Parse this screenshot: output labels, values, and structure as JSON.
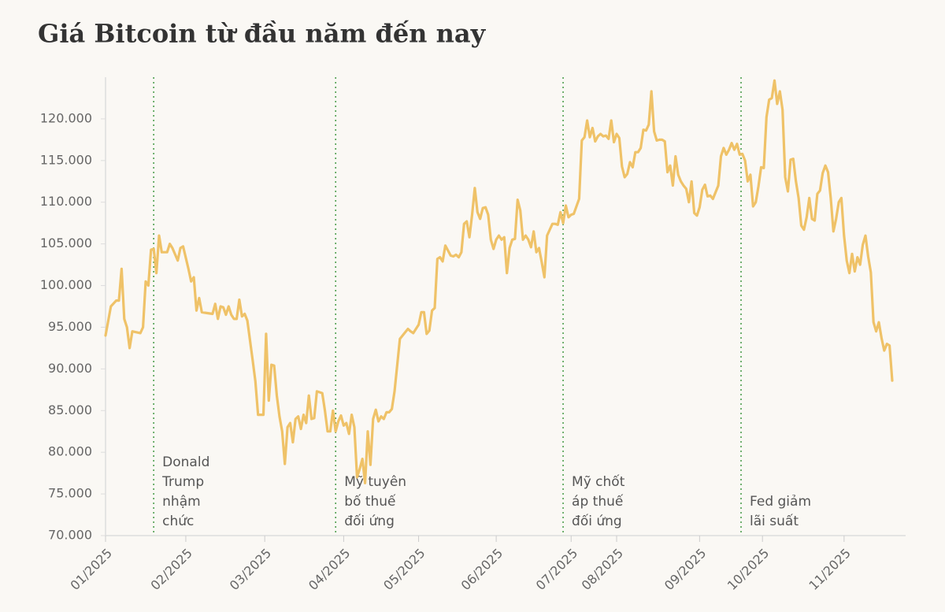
{
  "chart_data": {
    "type": "line",
    "title": "Giá Bitcoin từ đầu năm đến nay",
    "color": "#efc268",
    "x": [
      0,
      2,
      4,
      5,
      6,
      7,
      8,
      9,
      10,
      13,
      14,
      15,
      16,
      17,
      18,
      19,
      20,
      21,
      23,
      24,
      25,
      27,
      28,
      29,
      31,
      32,
      33,
      34,
      35,
      36,
      38,
      40,
      41,
      42,
      43,
      44,
      45,
      46,
      47,
      48,
      49,
      50,
      51,
      52,
      53,
      55,
      56,
      57,
      59,
      60,
      61,
      62,
      63,
      64,
      65,
      66,
      67,
      68,
      69,
      70,
      71,
      72,
      73,
      74,
      75,
      76,
      77,
      78,
      79,
      80,
      81,
      82,
      83,
      84,
      85,
      86,
      87,
      88,
      89,
      90,
      91,
      92,
      93,
      94,
      95,
      96,
      97,
      98,
      99,
      100,
      101,
      102,
      103,
      104,
      105,
      106,
      107,
      108,
      110,
      111,
      112,
      113,
      114,
      115,
      117,
      118,
      119,
      120,
      121,
      122,
      123,
      124,
      125,
      126,
      127,
      128,
      129,
      130,
      131,
      132,
      133,
      134,
      135,
      136,
      137,
      138,
      139,
      140,
      141,
      142,
      143,
      144,
      145,
      146,
      147,
      148,
      149,
      150,
      151,
      152,
      153,
      154,
      155,
      156,
      157,
      158,
      159,
      160,
      161,
      162,
      163,
      164,
      165,
      166,
      167,
      168,
      169,
      170,
      171,
      172,
      173,
      174,
      175,
      176,
      177,
      178,
      179,
      180,
      181,
      182,
      183,
      184,
      185,
      186,
      187,
      188,
      189,
      190,
      191,
      192,
      193,
      194,
      195,
      196,
      197,
      198,
      199,
      200,
      201,
      202,
      203,
      204,
      205,
      206,
      207,
      208,
      209,
      210,
      211,
      212,
      213,
      214,
      215,
      216,
      217,
      218,
      219,
      220,
      221,
      222,
      223,
      224,
      225,
      226,
      227,
      228,
      229,
      230,
      231,
      232,
      233,
      234,
      235,
      236,
      237,
      238,
      239,
      240,
      241,
      242,
      243,
      244,
      245,
      246,
      247,
      248,
      249,
      250,
      251,
      252,
      253,
      254,
      255,
      256,
      257,
      258,
      259,
      260,
      261,
      262,
      263,
      264,
      265,
      266,
      267,
      268,
      269,
      270,
      271,
      272,
      273,
      274,
      275,
      276,
      277,
      278,
      279,
      280,
      281,
      282,
      283,
      284,
      285,
      286,
      287,
      288,
      289,
      290,
      291,
      292,
      293,
      294
    ],
    "values": [
      94000,
      97500,
      98200,
      98200,
      102000,
      96000,
      95000,
      92500,
      94500,
      94300,
      95000,
      100500,
      100000,
      104300,
      104400,
      101500,
      106000,
      104000,
      104000,
      105000,
      104500,
      103000,
      104500,
      104700,
      102000,
      100500,
      101000,
      97000,
      98500,
      96800,
      96700,
      96600,
      97800,
      96000,
      97500,
      97400,
      96500,
      97500,
      96500,
      96000,
      96000,
      98300,
      96300,
      96600,
      95800,
      91000,
      88500,
      84500,
      84500,
      94200,
      86200,
      90500,
      90400,
      86800,
      84300,
      82500,
      78600,
      83000,
      83500,
      81200,
      84000,
      84300,
      82800,
      84500,
      83500,
      86800,
      84000,
      84100,
      87300,
      87200,
      87100,
      85000,
      82500,
      82500,
      85000,
      82500,
      83700,
      84400,
      83200,
      83500,
      82200,
      84500,
      83000,
      77000,
      78000,
      79200,
      76300,
      82500,
      78500,
      84000,
      85100,
      83700,
      84300,
      84000,
      84800,
      84800,
      85200,
      87300,
      93600,
      94000,
      94400,
      94800,
      94500,
      94300,
      95300,
      96800,
      96800,
      94200,
      94600,
      97000,
      97300,
      103200,
      103400,
      102900,
      104800,
      104200,
      103600,
      103500,
      103700,
      103400,
      104000,
      107400,
      107700,
      105800,
      108500,
      111700,
      108800,
      108000,
      109300,
      109400,
      108500,
      105500,
      104400,
      105500,
      106000,
      105500,
      105800,
      101500,
      104500,
      105500,
      105600,
      110300,
      109000,
      105500,
      106000,
      105500,
      104600,
      106500,
      104000,
      104500,
      102800,
      101000,
      106000,
      106700,
      107400,
      107400,
      107300,
      108800,
      107500,
      109600,
      108200,
      108500,
      108600,
      109500,
      110400,
      117400,
      117800,
      119800,
      117800,
      118900,
      117300,
      117900,
      118200,
      117900,
      118000,
      117600,
      119800,
      117200,
      118200,
      117700,
      114300,
      113000,
      113400,
      114800,
      114200,
      116000,
      116000,
      116500,
      118700,
      118600,
      119300,
      123300,
      118500,
      117400,
      117500,
      117500,
      117300,
      113600,
      114400,
      112000,
      115500,
      113300,
      112500,
      112000,
      111600,
      110000,
      112500,
      108700,
      108400,
      109400,
      111500,
      112100,
      110700,
      110800,
      110400,
      111200,
      112000,
      115500,
      116500,
      115700,
      116300,
      117100,
      116300,
      117000,
      115700,
      115800,
      115000,
      112500,
      113300,
      109500,
      110000,
      111900,
      114200,
      114100,
      120200,
      122300,
      122500,
      124600,
      121800,
      123300,
      121100,
      113000,
      111300,
      115100,
      115200,
      112500,
      110500,
      107200,
      106700,
      108200,
      110500,
      108000,
      107800,
      111000,
      111400,
      113500,
      114400,
      113600,
      110500,
      106500,
      108000,
      110000,
      110500,
      106000,
      103000,
      101500,
      103800,
      101700,
      103400,
      102500,
      104900,
      106000,
      103500,
      101600,
      95600,
      94500,
      95600,
      93700,
      92200,
      93000,
      92800,
      88600
    ],
    "xlim": [
      0,
      299
    ],
    "xticks": [
      {
        "value": 0,
        "label": "01/2025"
      },
      {
        "value": 30,
        "label": "02/2025"
      },
      {
        "value": 59.5,
        "label": "03/2025"
      },
      {
        "value": 89,
        "label": "04/2025"
      },
      {
        "value": 117,
        "label": "05/2025"
      },
      {
        "value": 146,
        "label": "06/2025"
      },
      {
        "value": 174,
        "label": "07/2025"
      },
      {
        "value": 191,
        "label": "08/2025"
      },
      {
        "value": 222,
        "label": "09/2025"
      },
      {
        "value": 245.5,
        "label": "10/2025"
      },
      {
        "value": 276,
        "label": "11/2025"
      }
    ],
    "ylim": [
      70000,
      125000
    ],
    "yticks": [
      {
        "value": 70000,
        "label": "70.000"
      },
      {
        "value": 75000,
        "label": "75.000"
      },
      {
        "value": 80000,
        "label": "80.000"
      },
      {
        "value": 85000,
        "label": "85.000"
      },
      {
        "value": 90000,
        "label": "90.000"
      },
      {
        "value": 95000,
        "label": "95.000"
      },
      {
        "value": 100000,
        "label": "100.000"
      },
      {
        "value": 105000,
        "label": "105.000"
      },
      {
        "value": 110000,
        "label": "110.000"
      },
      {
        "value": 115000,
        "label": "115.000"
      },
      {
        "value": 120000,
        "label": "120.000"
      }
    ],
    "annotations": [
      {
        "x": 18,
        "text": "Donald Trump nhậm chức"
      },
      {
        "x": 86,
        "text": "Mỹ tuyên bố thuế đối ứng"
      },
      {
        "x": 171,
        "text": "Mỹ chốt áp thuế đối ứng"
      },
      {
        "x": 237.5,
        "text": "Fed giảm lãi suất"
      }
    ]
  }
}
